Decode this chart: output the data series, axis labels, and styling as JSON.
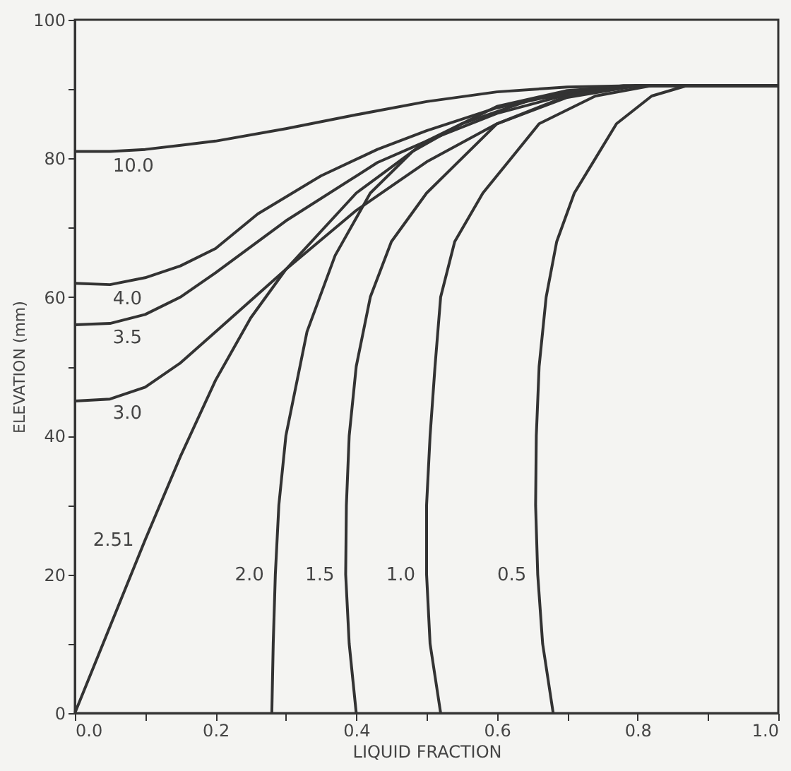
{
  "chart_data": {
    "type": "line",
    "xlabel": "LIQUID FRACTION",
    "ylabel": "ELEVATION (mm)",
    "xlim": [
      0,
      1
    ],
    "ylim": [
      0,
      100
    ],
    "xticks": [
      {
        "value": 0,
        "label": "0.0"
      },
      {
        "value": 0.1,
        "label": null
      },
      {
        "value": 0.2,
        "label": "0.2"
      },
      {
        "value": 0.3,
        "label": null
      },
      {
        "value": 0.4,
        "label": "0.4"
      },
      {
        "value": 0.5,
        "label": null
      },
      {
        "value": 0.6,
        "label": "0.6"
      },
      {
        "value": 0.7,
        "label": null
      },
      {
        "value": 0.8,
        "label": "0.8"
      },
      {
        "value": 0.9,
        "label": null
      },
      {
        "value": 1,
        "label": "1.0"
      }
    ],
    "yticks": [
      0,
      {
        "value": 10,
        "label": null
      },
      20,
      {
        "value": 30,
        "label": null
      },
      40,
      {
        "value": 50,
        "label": null
      },
      60,
      {
        "value": 70,
        "label": null
      },
      80,
      {
        "value": 90,
        "label": null
      },
      100
    ],
    "grid": false,
    "marker": "none",
    "line_style": "solid",
    "series": [
      {
        "name": "10.0",
        "color": "#333333",
        "x": [
          0,
          0.05,
          0.1,
          0.2,
          0.3,
          0.4,
          0.5,
          0.6,
          0.7,
          0.8,
          1.0
        ],
        "values": [
          81,
          81,
          81.3,
          82.5,
          84.3,
          86.3,
          88.2,
          89.6,
          90.3,
          90.5,
          90.5
        ]
      },
      {
        "name": "4.0",
        "color": "#333333",
        "x": [
          0,
          0.05,
          0.1,
          0.15,
          0.2,
          0.26,
          0.35,
          0.43,
          0.5,
          0.6,
          0.7,
          0.78,
          1.0
        ],
        "values": [
          62,
          61.8,
          62.8,
          64.5,
          67,
          72,
          77.5,
          81.3,
          84,
          87.3,
          89.5,
          90.5,
          90.5
        ]
      },
      {
        "name": "3.5",
        "color": "#333333",
        "x": [
          0,
          0.05,
          0.1,
          0.15,
          0.2,
          0.3,
          0.43,
          0.5,
          0.6,
          0.7,
          0.8,
          1.0
        ],
        "values": [
          56,
          56.2,
          57.5,
          60,
          63.5,
          71,
          79.4,
          82.5,
          86.5,
          89.2,
          90.5,
          90.5
        ]
      },
      {
        "name": "3.0",
        "color": "#333333",
        "x": [
          0,
          0.05,
          0.1,
          0.15,
          0.2,
          0.3,
          0.4,
          0.5,
          0.6,
          0.7,
          0.8,
          1.0
        ],
        "values": [
          45,
          45.3,
          47,
          50.5,
          55,
          64,
          72.5,
          79.5,
          85,
          88.8,
          90.5,
          90.5
        ]
      },
      {
        "name": "2.51",
        "color": "#333333",
        "x": [
          0,
          0.05,
          0.1,
          0.15,
          0.2,
          0.25,
          0.3,
          0.4,
          0.5,
          0.6,
          0.7,
          0.8,
          1.0
        ],
        "values": [
          0,
          12.5,
          25,
          37,
          48,
          57,
          64,
          75,
          82.5,
          87.5,
          89.8,
          90.5,
          90.5
        ]
      },
      {
        "name": "2.0",
        "color": "#333333",
        "x": [
          0.28,
          0.282,
          0.285,
          0.29,
          0.3,
          0.33,
          0.37,
          0.42,
          0.48,
          0.55,
          0.65,
          0.8,
          1.0
        ],
        "values": [
          0,
          10,
          20,
          30,
          40,
          55,
          66,
          75,
          81,
          85,
          88.5,
          90.5,
          90.5
        ]
      },
      {
        "name": "1.5",
        "color": "#333333",
        "x": [
          0.4,
          0.39,
          0.385,
          0.386,
          0.39,
          0.4,
          0.42,
          0.45,
          0.5,
          0.6,
          0.7,
          0.8,
          1.0
        ],
        "values": [
          0,
          10,
          20,
          30,
          40,
          50,
          60,
          68,
          75,
          85,
          89,
          90.5,
          90.5
        ]
      },
      {
        "name": "1.0",
        "color": "#333333",
        "x": [
          0.52,
          0.505,
          0.5,
          0.5,
          0.505,
          0.512,
          0.52,
          0.54,
          0.58,
          0.62,
          0.66,
          0.74,
          0.82,
          1.0
        ],
        "values": [
          0,
          10,
          20,
          30,
          40,
          50,
          60,
          68,
          75,
          80,
          85,
          89,
          90.5,
          90.5
        ]
      },
      {
        "name": "0.5",
        "color": "#333333",
        "x": [
          0.68,
          0.665,
          0.658,
          0.655,
          0.656,
          0.66,
          0.67,
          0.685,
          0.71,
          0.74,
          0.77,
          0.82,
          0.87,
          1.0
        ],
        "values": [
          0,
          10,
          20,
          30,
          40,
          50,
          60,
          68,
          75,
          80,
          85,
          89,
          90.5,
          90.5
        ]
      }
    ]
  }
}
